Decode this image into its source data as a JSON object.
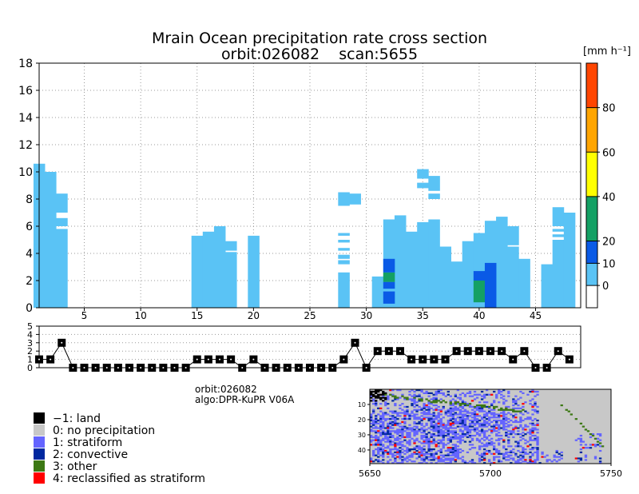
{
  "title_line1": "Mrain Ocean precipitation rate cross section",
  "title_line2": "orbit:026082    scan:5655",
  "colorbar_unit": "[mm h⁻¹]",
  "info_orbit": "orbit:026082",
  "info_algo": "algo:DPR-KuPR V06A",
  "legend": [
    {
      "code": "−1",
      "label": "land",
      "color": "#000000"
    },
    {
      "code": "0",
      "label": "no precipitation",
      "color": "#c8c8c8"
    },
    {
      "code": "1",
      "label": "stratiform",
      "color": "#6464ff"
    },
    {
      "code": "2",
      "label": "convective",
      "color": "#0028a0"
    },
    {
      "code": "3",
      "label": "other",
      "color": "#3c7814"
    },
    {
      "code": "4",
      "label": "reclassified as stratiform",
      "color": "#ff0000"
    }
  ],
  "colors": {
    "light_blue": "#5ac3f5",
    "blue": "#0a5ae6",
    "green": "#14a064"
  },
  "chart_data": [
    {
      "type": "bar",
      "name": "precipitation cross section",
      "title": "Mrain Ocean precipitation rate cross section",
      "subtitle": "orbit:026082    scan:5655",
      "xlabel": "",
      "ylabel": "",
      "xlim": [
        1,
        49
      ],
      "ylim": [
        0,
        18
      ],
      "xticks": [
        5,
        10,
        15,
        20,
        25,
        30,
        35,
        40,
        45
      ],
      "yticks": [
        0,
        2,
        4,
        6,
        8,
        10,
        12,
        14,
        16,
        18
      ],
      "grid": true,
      "columns": [
        {
          "x": 1,
          "top": 10.6,
          "gaps": []
        },
        {
          "x": 2,
          "top": 10.0,
          "gaps": []
        },
        {
          "x": 3,
          "top": 8.4,
          "gaps": [
            [
              5.8,
              6.0
            ],
            [
              6.6,
              7.0
            ]
          ]
        },
        {
          "x": 15,
          "top": 5.3,
          "gaps": []
        },
        {
          "x": 16,
          "top": 5.6,
          "gaps": []
        },
        {
          "x": 17,
          "top": 6.0,
          "gaps": []
        },
        {
          "x": 18,
          "top": 4.9,
          "gaps": [
            [
              4.1,
              4.2
            ]
          ]
        },
        {
          "x": 20,
          "top": 5.3,
          "gaps": []
        },
        {
          "x": 28,
          "top": 8.5,
          "gaps": [
            [
              2.6,
              3.2
            ],
            [
              3.5,
              3.6
            ],
            [
              3.9,
              4.2
            ],
            [
              4.4,
              4.8
            ],
            [
              5.0,
              5.3
            ],
            [
              5.5,
              7.5
            ]
          ]
        },
        {
          "x": 29,
          "top": 8.4,
          "gaps": [
            [
              0,
              7.6
            ]
          ]
        },
        {
          "x": 31,
          "top": 2.3,
          "gaps": []
        },
        {
          "x": 32,
          "top": 6.5,
          "gaps": []
        },
        {
          "x": 33,
          "top": 6.8,
          "gaps": []
        },
        {
          "x": 34,
          "top": 5.6,
          "gaps": []
        },
        {
          "x": 35,
          "top": 10.2,
          "gaps": [
            [
              6.3,
              8.8
            ],
            [
              9.2,
              9.5
            ]
          ]
        },
        {
          "x": 36,
          "top": 9.7,
          "gaps": [
            [
              6.5,
              8.0
            ],
            [
              8.4,
              8.6
            ]
          ]
        },
        {
          "x": 37,
          "top": 4.5,
          "gaps": []
        },
        {
          "x": 38,
          "top": 3.4,
          "gaps": []
        },
        {
          "x": 39,
          "top": 4.9,
          "gaps": []
        },
        {
          "x": 40,
          "top": 5.5,
          "gaps": []
        },
        {
          "x": 41,
          "top": 6.4,
          "gaps": []
        },
        {
          "x": 42,
          "top": 6.7,
          "gaps": []
        },
        {
          "x": 43,
          "top": 6.0,
          "gaps": [
            [
              4.5,
              4.6
            ]
          ]
        },
        {
          "x": 44,
          "top": 3.6,
          "gaps": []
        },
        {
          "x": 46,
          "top": 3.2,
          "gaps": []
        },
        {
          "x": 47,
          "top": 7.4,
          "gaps": [
            [
              5.0,
              5.2
            ],
            [
              5.4,
              5.6
            ],
            [
              5.8,
              6.0
            ]
          ]
        },
        {
          "x": 48,
          "top": 7.0,
          "gaps": []
        }
      ],
      "intense_cells": [
        {
          "x": 32,
          "y0": 0.3,
          "y1": 1.2,
          "color": "#0a5ae6"
        },
        {
          "x": 32,
          "y0": 1.4,
          "y1": 1.9,
          "color": "#0a5ae6"
        },
        {
          "x": 32,
          "y0": 1.9,
          "y1": 2.6,
          "color": "#14a064"
        },
        {
          "x": 32,
          "y0": 2.6,
          "y1": 3.6,
          "color": "#0a5ae6"
        },
        {
          "x": 40,
          "y0": 0.4,
          "y1": 2.0,
          "color": "#14a064"
        },
        {
          "x": 40,
          "y0": 2.0,
          "y1": 2.7,
          "color": "#0a5ae6"
        },
        {
          "x": 41,
          "y0": 0,
          "y1": 3.3,
          "color": "#0a5ae6"
        }
      ]
    },
    {
      "type": "line",
      "name": "rain type",
      "xlim": [
        1,
        49
      ],
      "ylim": [
        0,
        5
      ],
      "yticks": [
        0,
        1,
        2,
        3,
        4,
        5
      ],
      "x": [
        1,
        2,
        3,
        4,
        5,
        6,
        7,
        8,
        9,
        10,
        11,
        12,
        13,
        14,
        15,
        16,
        17,
        18,
        19,
        20,
        21,
        22,
        23,
        24,
        25,
        26,
        27,
        28,
        29,
        30,
        31,
        32,
        33,
        34,
        35,
        36,
        37,
        38,
        39,
        40,
        41,
        42,
        43,
        44,
        45,
        46,
        47,
        48
      ],
      "values": [
        1,
        1,
        3,
        0,
        0,
        0,
        0,
        0,
        0,
        0,
        0,
        0,
        0,
        0,
        1,
        1,
        1,
        1,
        0,
        1,
        0,
        0,
        0,
        0,
        0,
        0,
        0,
        1,
        3,
        0,
        2,
        2,
        2,
        1,
        1,
        1,
        1,
        2,
        2,
        2,
        2,
        2,
        1,
        2,
        0,
        0,
        2,
        1
      ]
    },
    {
      "type": "colorbar",
      "unit": "[mm h⁻¹]",
      "ticks": [
        0,
        10,
        20,
        40,
        60,
        80
      ],
      "segments": [
        {
          "from": -10,
          "to": 0,
          "color": "#ffffff"
        },
        {
          "from": 0,
          "to": 10,
          "color": "#5ac3f5"
        },
        {
          "from": 10,
          "to": 20,
          "color": "#0a5ae6"
        },
        {
          "from": 20,
          "to": 40,
          "color": "#14a064"
        },
        {
          "from": 40,
          "to": 60,
          "color": "#ffff00"
        },
        {
          "from": 60,
          "to": 80,
          "color": "#ffa500"
        },
        {
          "from": 80,
          "to": 100,
          "color": "#ff4500"
        }
      ]
    },
    {
      "type": "heatmap",
      "name": "rain type map",
      "xlim": [
        5650,
        5750
      ],
      "ylim": [
        0,
        49
      ],
      "xticks": [
        5650,
        5700,
        5750
      ],
      "yticks": [
        10,
        20,
        30,
        40
      ]
    }
  ]
}
